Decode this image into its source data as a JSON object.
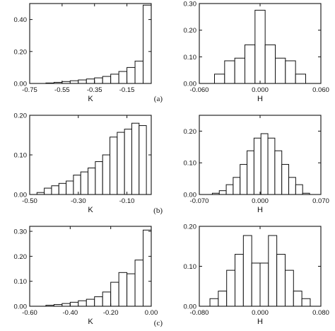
{
  "chart_data": [
    {
      "id": "a-left",
      "type": "bar",
      "panel": "(a)",
      "xlabel": "K",
      "ylabel": "",
      "xlim": [
        -0.75,
        0.0
      ],
      "ylim": [
        0,
        0.5
      ],
      "xticks": [
        -0.75,
        -0.55,
        -0.35,
        -0.15
      ],
      "xtick_labels": [
        "-0.75",
        "-0.55",
        "-0.35",
        "-0.15"
      ],
      "yticks": [
        0,
        0.2,
        0.4
      ],
      "ytick_labels": [
        "0.00",
        "0.20",
        "0.40"
      ],
      "bin_edges": [
        -0.65,
        -0.6,
        -0.55,
        -0.5,
        -0.45,
        -0.4,
        -0.35,
        -0.3,
        -0.25,
        -0.2,
        -0.15,
        -0.1,
        -0.05,
        0.0
      ],
      "values": [
        0.003,
        0.007,
        0.012,
        0.017,
        0.022,
        0.028,
        0.035,
        0.044,
        0.058,
        0.075,
        0.1,
        0.14,
        0.49
      ]
    },
    {
      "id": "a-right",
      "type": "bar",
      "panel": "(a)",
      "xlabel": "H",
      "ylabel": "",
      "xlim": [
        -0.06,
        0.06
      ],
      "ylim": [
        0,
        0.3
      ],
      "xticks": [
        -0.06,
        0.0,
        0.06
      ],
      "xtick_labels": [
        "-0.060",
        "0.000",
        "0.060"
      ],
      "yticks": [
        0,
        0.1,
        0.2,
        0.3
      ],
      "ytick_labels": [
        "0.00",
        "0.10",
        "0.20",
        "0.30"
      ],
      "bin_edges": [
        -0.045,
        -0.035,
        -0.025,
        -0.015,
        -0.005,
        0.005,
        0.015,
        0.025,
        0.035,
        0.045
      ],
      "values": [
        0.035,
        0.085,
        0.095,
        0.145,
        0.275,
        0.145,
        0.095,
        0.085,
        0.035
      ]
    },
    {
      "id": "b-left",
      "type": "bar",
      "panel": "(b)",
      "xlabel": "K",
      "ylabel": "",
      "xlim": [
        -0.5,
        0.0
      ],
      "ylim": [
        0,
        0.2
      ],
      "xticks": [
        -0.5,
        -0.3,
        -0.1
      ],
      "xtick_labels": [
        "-0.50",
        "-0.30",
        "-0.10"
      ],
      "yticks": [
        0,
        0.1,
        0.2
      ],
      "ytick_labels": [
        "0.00",
        "0.10",
        "0.20"
      ],
      "bin_edges": [
        -0.47,
        -0.44,
        -0.41,
        -0.38,
        -0.35,
        -0.32,
        -0.29,
        -0.26,
        -0.23,
        -0.2,
        -0.17,
        -0.14,
        -0.11,
        -0.08,
        -0.05,
        -0.02
      ],
      "values": [
        0.005,
        0.016,
        0.022,
        0.028,
        0.034,
        0.049,
        0.057,
        0.067,
        0.083,
        0.1,
        0.145,
        0.157,
        0.165,
        0.18,
        0.174
      ]
    },
    {
      "id": "b-right",
      "type": "bar",
      "panel": "(b)",
      "xlabel": "H",
      "ylabel": "",
      "xlim": [
        -0.07,
        0.07
      ],
      "ylim": [
        0,
        0.25
      ],
      "xticks": [
        -0.07,
        0.0,
        0.07
      ],
      "xtick_labels": [
        "-0.070",
        "0.000",
        "0.070"
      ],
      "yticks": [
        0,
        0.1,
        0.2
      ],
      "ytick_labels": [
        "0.00",
        "0.10",
        "0.20"
      ],
      "bin_edges": [
        -0.055,
        -0.047,
        -0.039,
        -0.031,
        -0.023,
        -0.015,
        -0.007,
        0.001,
        0.009,
        0.017,
        0.025,
        0.033,
        0.041,
        0.049,
        0.057
      ],
      "values": [
        0.004,
        0.012,
        0.031,
        0.054,
        0.095,
        0.138,
        0.178,
        0.192,
        0.178,
        0.138,
        0.095,
        0.054,
        0.031,
        0.004
      ]
    },
    {
      "id": "c-left",
      "type": "bar",
      "panel": "(c)",
      "xlabel": "K",
      "ylabel": "",
      "xlim": [
        -0.6,
        0.0
      ],
      "ylim": [
        0,
        0.32
      ],
      "xticks": [
        -0.6,
        -0.4,
        -0.2,
        0.0
      ],
      "xtick_labels": [
        "-0.60",
        "-0.40",
        "-0.20",
        "0.00"
      ],
      "yticks": [
        0,
        0.1,
        0.2,
        0.3
      ],
      "ytick_labels": [
        "0.00",
        "0.10",
        "0.20",
        "0.30"
      ],
      "bin_edges": [
        -0.52,
        -0.48,
        -0.44,
        -0.4,
        -0.36,
        -0.32,
        -0.28,
        -0.24,
        -0.2,
        -0.16,
        -0.12,
        -0.08,
        -0.04,
        0.0
      ],
      "values": [
        0.004,
        0.007,
        0.011,
        0.016,
        0.022,
        0.028,
        0.038,
        0.057,
        0.096,
        0.135,
        0.13,
        0.185,
        0.305
      ]
    },
    {
      "id": "c-right",
      "type": "bar",
      "panel": "(c)",
      "xlabel": "H",
      "ylabel": "",
      "xlim": [
        -0.08,
        0.08
      ],
      "ylim": [
        0,
        0.2
      ],
      "xticks": [
        -0.08,
        0.0,
        0.08
      ],
      "xtick_labels": [
        "-0.080",
        "0.000",
        "0.080"
      ],
      "yticks": [
        0,
        0.1,
        0.2
      ],
      "ytick_labels": [
        "0.00",
        "0.10",
        "0.20"
      ],
      "bin_edges": [
        -0.066,
        -0.055,
        -0.044,
        -0.033,
        -0.022,
        -0.011,
        0.0,
        0.011,
        0.022,
        0.033,
        0.044,
        0.055,
        0.066
      ],
      "values": [
        0.019,
        0.038,
        0.09,
        0.13,
        0.177,
        0.108,
        0.108,
        0.177,
        0.13,
        0.09,
        0.038,
        0.019
      ]
    }
  ]
}
